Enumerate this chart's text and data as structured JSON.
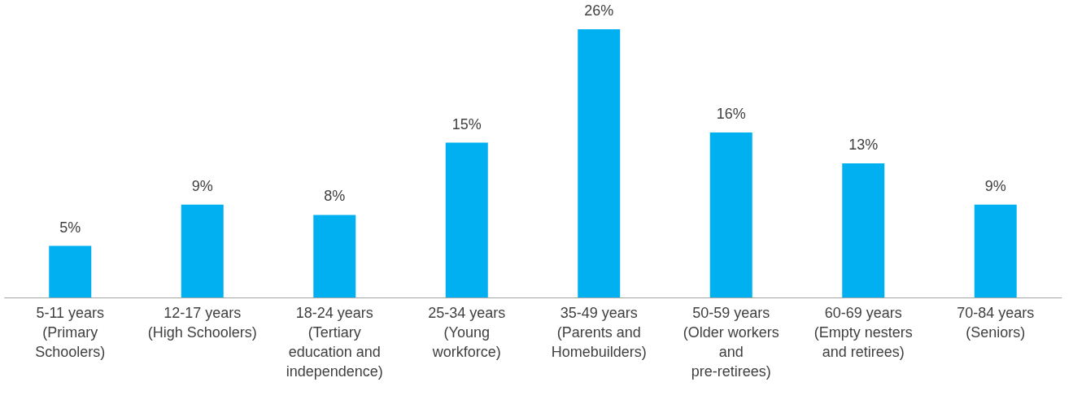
{
  "chart_data": {
    "type": "bar",
    "categories": [
      "5-11 years (Primary Schoolers)",
      "12-17 years (High Schoolers)",
      "18-24 years (Tertiary education and independence)",
      "25-34 years (Young workforce)",
      "35-49 years (Parents and Homebuilders)",
      "50-59 years (Older workers and pre-retirees)",
      "60-69 years (Empty nesters and retirees)",
      "70-84 years (Seniors)"
    ],
    "values": [
      5,
      9,
      8,
      15,
      26,
      16,
      13,
      9
    ],
    "value_labels": [
      "5%",
      "9%",
      "8%",
      "15%",
      "26%",
      "16%",
      "13%",
      "9%"
    ],
    "color": "#00b0f0"
  }
}
